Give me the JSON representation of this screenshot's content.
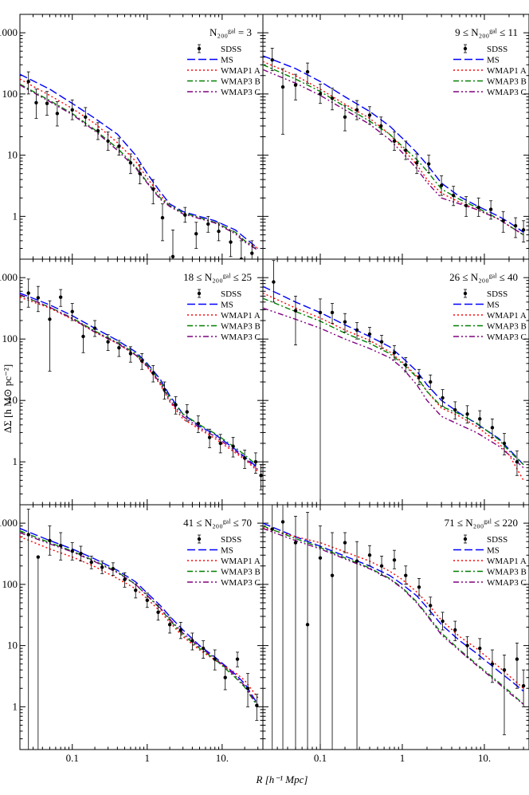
{
  "figure": {
    "xlabel": "R [h⁻¹ Mpc]",
    "ylabel": "ΔΣ [h M⊙ pc⁻²]"
  },
  "legend": [
    {
      "label": "SDSS",
      "style": "points",
      "color": "#000000"
    },
    {
      "label": "MS",
      "style": "long-dash",
      "color": "#0000ff"
    },
    {
      "label": "WMAP1 A",
      "style": "dotted",
      "color": "#ff0000"
    },
    {
      "label": "WMAP3 B",
      "style": "dash-dot",
      "color": "#008000"
    },
    {
      "label": "WMAP3 C",
      "style": "dash-dot-dot",
      "color": "#800080"
    }
  ],
  "chart_data": [
    {
      "type": "line",
      "title": "N₂₀₀ᵍᵃˡ = 3",
      "xlim": [
        0.02,
        35
      ],
      "ylim": [
        0.2,
        2000
      ],
      "xscale": "log",
      "yscale": "log",
      "x": [
        0.02,
        0.05,
        0.1,
        0.2,
        0.4,
        0.7,
        1.0,
        1.5,
        2.0,
        3.0,
        5.0,
        8.0,
        15.0,
        20.0,
        30.0
      ],
      "series": [
        {
          "name": "MS",
          "values": [
            210,
            120,
            70,
            40,
            22,
            10,
            5.0,
            2.5,
            1.6,
            1.2,
            1.0,
            0.85,
            0.6,
            0.45,
            0.3
          ]
        },
        {
          "name": "WMAP1 A",
          "values": [
            175,
            95,
            58,
            33,
            16,
            8.0,
            4.2,
            2.2,
            1.5,
            1.15,
            0.95,
            0.8,
            0.55,
            0.4,
            0.3
          ]
        },
        {
          "name": "WMAP3 B",
          "values": [
            145,
            78,
            48,
            26,
            13,
            6.5,
            3.6,
            2.0,
            1.5,
            1.15,
            0.95,
            0.8,
            0.55,
            0.4,
            0.28
          ]
        },
        {
          "name": "WMAP3 C",
          "values": [
            140,
            75,
            46,
            25,
            12,
            6.2,
            3.5,
            1.9,
            1.45,
            1.1,
            0.92,
            0.78,
            0.52,
            0.38,
            0.28
          ]
        }
      ],
      "sdss": {
        "x": [
          0.026,
          0.033,
          0.046,
          0.063,
          0.1,
          0.15,
          0.22,
          0.3,
          0.42,
          0.6,
          0.8,
          1.2,
          1.6,
          2.2,
          3.2,
          4.5,
          6.5,
          9.0,
          13,
          18,
          25
        ],
        "y": [
          160,
          72,
          70,
          48,
          55,
          42,
          25,
          17,
          14,
          7.5,
          5.0,
          2.8,
          0.95,
          0.22,
          1.05,
          0.52,
          0.75,
          0.57,
          0.38,
          0.2,
          0.25
        ],
        "lo": [
          100,
          40,
          45,
          30,
          38,
          30,
          18,
          12,
          10,
          5.0,
          3.4,
          1.6,
          0.4,
          0.1,
          0.8,
          0.3,
          0.55,
          0.4,
          0.22,
          0.1,
          0.12
        ],
        "hi": [
          230,
          120,
          110,
          75,
          80,
          60,
          34,
          24,
          19,
          10.5,
          7.0,
          4.0,
          1.6,
          0.6,
          1.4,
          0.8,
          1.0,
          0.78,
          0.58,
          0.4,
          0.4
        ]
      }
    },
    {
      "type": "line",
      "title": "9 ≤ N₂₀₀ᵍᵃˡ ≤ 11",
      "xlim": [
        0.02,
        35
      ],
      "ylim": [
        0.2,
        2000
      ],
      "xscale": "log",
      "yscale": "log",
      "x": [
        0.02,
        0.05,
        0.1,
        0.2,
        0.4,
        0.7,
        1.0,
        1.5,
        2.0,
        3.0,
        5.0,
        8.0,
        15.0,
        20.0,
        30.0
      ],
      "series": [
        {
          "name": "MS",
          "values": [
            420,
            260,
            160,
            90,
            52,
            30,
            19,
            11,
            7.0,
            3.5,
            2.1,
            1.5,
            1.0,
            0.8,
            0.55
          ]
        },
        {
          "name": "WMAP1 A",
          "values": [
            340,
            200,
            120,
            68,
            40,
            22,
            13,
            7.0,
            4.0,
            2.4,
            1.7,
            1.3,
            0.9,
            0.7,
            0.5
          ]
        },
        {
          "name": "WMAP3 B",
          "values": [
            300,
            175,
            110,
            62,
            36,
            22,
            14,
            8.5,
            5.5,
            2.8,
            1.9,
            1.4,
            0.9,
            0.7,
            0.5
          ]
        },
        {
          "name": "WMAP3 C",
          "values": [
            250,
            150,
            95,
            55,
            32,
            18,
            11,
            6.0,
            3.6,
            2.0,
            1.6,
            1.3,
            0.9,
            0.7,
            0.5
          ]
        }
      ],
      "sdss": {
        "x": [
          0.026,
          0.035,
          0.05,
          0.07,
          0.1,
          0.14,
          0.2,
          0.28,
          0.4,
          0.55,
          0.8,
          1.1,
          1.5,
          2.1,
          3.0,
          4.2,
          6.0,
          8.5,
          12,
          17,
          24,
          30
        ],
        "y": [
          360,
          130,
          140,
          230,
          100,
          85,
          42,
          55,
          45,
          30,
          17,
          12,
          7.5,
          7.2,
          3.2,
          2.2,
          1.5,
          1.4,
          1.3,
          0.85,
          0.7,
          0.6
        ],
        "lo": [
          240,
          22,
          80,
          150,
          70,
          55,
          25,
          38,
          32,
          22,
          12,
          8.5,
          5.0,
          5.2,
          2.2,
          1.5,
          1.0,
          1.0,
          0.9,
          0.55,
          0.45,
          0.38
        ],
        "hi": [
          560,
          260,
          210,
          320,
          145,
          125,
          65,
          78,
          62,
          42,
          24,
          17,
          10.5,
          10,
          4.6,
          3.1,
          2.1,
          2.0,
          1.8,
          1.2,
          0.95,
          0.85
        ]
      }
    },
    {
      "type": "line",
      "title": "18 ≤ N₂₀₀ᵍᵃˡ ≤ 25",
      "xlim": [
        0.02,
        35
      ],
      "ylim": [
        0.2,
        2000
      ],
      "xscale": "log",
      "yscale": "log",
      "x": [
        0.02,
        0.05,
        0.1,
        0.2,
        0.4,
        0.7,
        1.0,
        1.5,
        2.0,
        3.0,
        5.0,
        8.0,
        15.0,
        20.0,
        30.0
      ],
      "series": [
        {
          "name": "MS",
          "values": [
            560,
            360,
            240,
            150,
            95,
            62,
            40,
            22,
            12,
            6.0,
            3.8,
            2.8,
            1.6,
            1.2,
            0.8
          ]
        },
        {
          "name": "WMAP1 A",
          "values": [
            480,
            320,
            210,
            130,
            85,
            55,
            35,
            18,
            9.5,
            5.0,
            3.4,
            2.4,
            1.4,
            1.1,
            0.7
          ]
        },
        {
          "name": "WMAP3 B",
          "values": [
            520,
            330,
            220,
            135,
            88,
            58,
            38,
            20,
            11,
            6.0,
            4.0,
            2.9,
            1.7,
            1.3,
            0.85
          ]
        },
        {
          "name": "WMAP3 C",
          "values": [
            530,
            330,
            215,
            130,
            85,
            55,
            36,
            19,
            10,
            5.5,
            3.6,
            2.6,
            1.5,
            1.15,
            0.75
          ]
        }
      ],
      "sdss": {
        "x": [
          0.026,
          0.035,
          0.05,
          0.07,
          0.1,
          0.14,
          0.2,
          0.3,
          0.42,
          0.6,
          0.85,
          1.2,
          1.7,
          2.4,
          3.4,
          4.8,
          6.8,
          9.5,
          14,
          20,
          28,
          33
        ],
        "y": [
          560,
          470,
          210,
          480,
          280,
          110,
          150,
          90,
          72,
          58,
          44,
          28,
          15,
          8.5,
          6.5,
          4.2,
          2.5,
          2.0,
          1.8,
          1.15,
          1.0,
          0.6
        ],
        "lo": [
          330,
          280,
          30,
          340,
          200,
          60,
          110,
          65,
          52,
          42,
          32,
          20,
          10.5,
          6.0,
          4.6,
          3.0,
          1.7,
          1.4,
          1.2,
          0.78,
          0.65,
          0.35
        ],
        "hi": [
          950,
          720,
          420,
          640,
          380,
          170,
          200,
          118,
          95,
          75,
          58,
          37,
          20,
          11.5,
          8.5,
          5.6,
          3.4,
          2.8,
          2.5,
          1.55,
          1.4,
          0.9
        ]
      }
    },
    {
      "type": "line",
      "title": "26 ≤ N₂₀₀ᵍᵃˡ ≤ 40",
      "xlim": [
        0.02,
        35
      ],
      "ylim": [
        0.2,
        2000
      ],
      "xscale": "log",
      "yscale": "log",
      "x": [
        0.02,
        0.05,
        0.1,
        0.2,
        0.4,
        0.7,
        1.0,
        1.5,
        2.0,
        3.0,
        5.0,
        8.0,
        15.0,
        20.0,
        30.0
      ],
      "series": [
        {
          "name": "MS",
          "values": [
            720,
            400,
            270,
            170,
            110,
            75,
            50,
            30,
            18,
            10,
            6.2,
            4.2,
            2.4,
            1.6,
            0.9
          ]
        },
        {
          "name": "WMAP1 A",
          "values": [
            560,
            320,
            220,
            140,
            95,
            62,
            42,
            25,
            14,
            7.5,
            5.5,
            3.8,
            2.0,
            1.3,
            0.5
          ]
        },
        {
          "name": "WMAP3 B",
          "values": [
            460,
            280,
            195,
            125,
            85,
            58,
            40,
            24,
            14,
            8.0,
            6.0,
            4.3,
            2.3,
            1.5,
            0.9
          ]
        },
        {
          "name": "WMAP3 C",
          "values": [
            320,
            210,
            150,
            100,
            70,
            50,
            34,
            18,
            10,
            5.5,
            4.0,
            3.0,
            1.8,
            1.3,
            0.8
          ]
        }
      ],
      "sdss": {
        "x": [
          0.027,
          0.05,
          0.1,
          0.14,
          0.2,
          0.28,
          0.4,
          0.56,
          0.8,
          1.1,
          1.6,
          2.2,
          3.1,
          4.4,
          6.2,
          8.8,
          12.5,
          17.5,
          25
        ],
        "y": [
          850,
          290,
          270,
          270,
          190,
          140,
          120,
          90,
          60,
          38,
          24,
          20,
          11,
          7.0,
          6.0,
          5.0,
          3.6,
          2.0,
          1.0
        ],
        "lo": [
          400,
          80,
          0.1,
          180,
          130,
          100,
          90,
          70,
          46,
          29,
          18,
          15,
          8.0,
          5.0,
          4.3,
          3.6,
          2.5,
          1.3,
          0.6
        ],
        "hi": [
          1900,
          500,
          450,
          380,
          260,
          185,
          155,
          115,
          78,
          50,
          32,
          26,
          15,
          9.5,
          8.2,
          6.8,
          5.0,
          2.9,
          1.5
        ]
      }
    },
    {
      "type": "line",
      "title": "41 ≤ N₂₀₀ᵍᵃˡ ≤ 70",
      "xlim": [
        0.02,
        35
      ],
      "ylim": [
        0.2,
        2000
      ],
      "xscale": "log",
      "yscale": "log",
      "x": [
        0.02,
        0.05,
        0.1,
        0.2,
        0.4,
        0.7,
        1.0,
        1.5,
        2.0,
        3.0,
        5.0,
        8.0,
        15.0,
        20.0,
        30.0
      ],
      "series": [
        {
          "name": "MS",
          "values": [
            820,
            520,
            380,
            260,
            170,
            110,
            72,
            45,
            30,
            18,
            10,
            6.5,
            3.4,
            2.4,
            1.1
          ]
        },
        {
          "name": "WMAP1 A",
          "values": [
            600,
            380,
            280,
            195,
            125,
            85,
            58,
            36,
            24,
            14,
            8.5,
            5.8,
            3.6,
            2.7,
            1.4
          ]
        },
        {
          "name": "WMAP3 B",
          "values": [
            750,
            480,
            350,
            240,
            160,
            100,
            65,
            40,
            26,
            15,
            9.0,
            6.0,
            3.0,
            2.1,
            1.0
          ]
        },
        {
          "name": "WMAP3 C",
          "values": [
            700,
            460,
            340,
            235,
            155,
            100,
            66,
            41,
            27,
            16,
            9.5,
            6.2,
            3.2,
            2.2,
            1.05
          ]
        }
      ],
      "sdss": {
        "x": [
          0.026,
          0.035,
          0.05,
          0.07,
          0.1,
          0.13,
          0.18,
          0.25,
          0.35,
          0.5,
          0.7,
          1.0,
          1.4,
          2.0,
          2.8,
          4.0,
          5.6,
          8.0,
          11,
          16,
          22,
          29
        ],
        "y": [
          650,
          280,
          520,
          430,
          350,
          320,
          230,
          190,
          180,
          120,
          80,
          55,
          35,
          22,
          18,
          12,
          9.0,
          6.0,
          3.0,
          6.0,
          2.0,
          1.05
        ],
        "lo": [
          0.1,
          0.1,
          300,
          250,
          250,
          240,
          180,
          150,
          140,
          90,
          60,
          42,
          26,
          16,
          13,
          8.5,
          6.2,
          4.0,
          1.9,
          4.5,
          1.0,
          0.6
        ],
        "hi": [
          1700,
          280,
          900,
          700,
          480,
          420,
          290,
          240,
          225,
          155,
          102,
          72,
          46,
          29,
          24,
          16,
          12,
          8.5,
          4.5,
          7.8,
          3.5,
          1.6
        ]
      }
    },
    {
      "type": "line",
      "title": "71 ≤ N₂₀₀ᵍᵃˡ ≤ 220",
      "xlim": [
        0.02,
        35
      ],
      "ylim": [
        0.2,
        2000
      ],
      "xscale": "log",
      "yscale": "log",
      "x": [
        0.02,
        0.05,
        0.1,
        0.2,
        0.4,
        0.7,
        1.0,
        1.5,
        2.0,
        3.0,
        5.0,
        8.0,
        15.0,
        20.0,
        30.0
      ],
      "series": [
        {
          "name": "MS",
          "values": [
            1000,
            600,
            420,
            290,
            200,
            140,
            100,
            65,
            42,
            22,
            12,
            7.5,
            3.8,
            2.8,
            1.8
          ]
        },
        {
          "name": "WMAP1 A",
          "values": [
            850,
            600,
            480,
            340,
            240,
            165,
            120,
            75,
            50,
            26,
            14,
            9.0,
            4.5,
            3.2,
            2.0
          ]
        },
        {
          "name": "WMAP3 B",
          "values": [
            900,
            560,
            400,
            270,
            185,
            125,
            88,
            52,
            32,
            16,
            8.5,
            5.0,
            2.5,
            1.8,
            1.1
          ]
        },
        {
          "name": "WMAP3 C",
          "values": [
            820,
            520,
            380,
            260,
            180,
            122,
            86,
            50,
            31,
            15,
            8.2,
            4.8,
            2.4,
            1.7,
            1.1
          ]
        }
      ],
      "sdss": {
        "x": [
          0.026,
          0.035,
          0.05,
          0.07,
          0.1,
          0.14,
          0.2,
          0.28,
          0.4,
          0.56,
          0.8,
          1.1,
          1.6,
          2.2,
          3.1,
          4.4,
          6.2,
          8.8,
          12.5,
          17.5,
          25,
          30
        ],
        "y": [
          800,
          1050,
          480,
          22,
          270,
          140,
          480,
          240,
          300,
          200,
          250,
          140,
          90,
          45,
          25,
          18,
          10,
          9.0,
          5.0,
          4.0,
          6.0,
          2.2
        ],
        "lo": [
          0.1,
          0.1,
          0.1,
          0.1,
          0.1,
          0.1,
          330,
          0.1,
          200,
          140,
          180,
          100,
          65,
          32,
          18,
          12,
          6.5,
          6.0,
          2.5,
          0.35,
          2.0,
          1.0
        ],
        "hi": [
          2000,
          2000,
          1300,
          1500,
          900,
          700,
          700,
          500,
          430,
          290,
          360,
          200,
          125,
          62,
          35,
          25,
          14,
          13,
          8.5,
          7.0,
          11,
          4.0
        ]
      }
    }
  ]
}
